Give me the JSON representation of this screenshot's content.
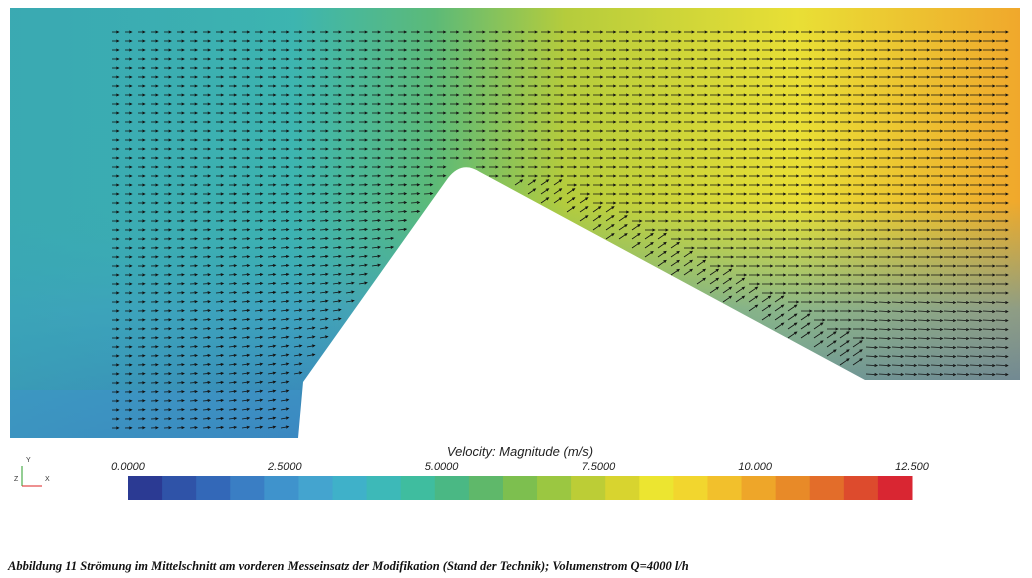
{
  "figure": {
    "colorbar": {
      "title": "Velocity: Magnitude (m/s)",
      "range": [
        0,
        12.5
      ],
      "ticks": [
        {
          "value": 0,
          "label": "0.0000"
        },
        {
          "value": 2.5,
          "label": "2.5000"
        },
        {
          "value": 5,
          "label": "5.0000"
        },
        {
          "value": 7.5,
          "label": "7.5000"
        },
        {
          "value": 10,
          "label": "10.000"
        },
        {
          "value": 12.5,
          "label": "12.500"
        }
      ],
      "colors": [
        "#2b3a93",
        "#2f53a8",
        "#3368b8",
        "#3a7ec4",
        "#3f93cc",
        "#44a4cf",
        "#3fb1c9",
        "#3db9b8",
        "#3fbd9f",
        "#4ab884",
        "#5fb86a",
        "#7dbf4f",
        "#9bc741",
        "#bccd36",
        "#d8d42f",
        "#ece530",
        "#f2d62e",
        "#f2c02c",
        "#eea629",
        "#e88a28",
        "#e36d2a",
        "#dd4b2d",
        "#d92632"
      ]
    },
    "axis_triad": {
      "y": "Y",
      "z": "Z",
      "x": "X"
    },
    "caption": "Abbildung 11 Strömung im Mittelschnitt am vorderen Messeinsatz der Modifikation (Stand der Technik); Volumenstrom Q=4000 l/h"
  }
}
